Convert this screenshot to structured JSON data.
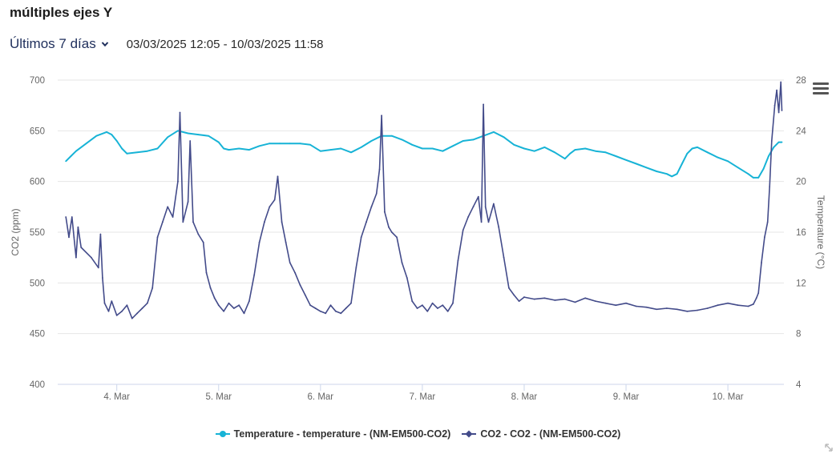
{
  "header": {
    "title": "múltiples ejes Y",
    "range_label": "Últimos 7 días",
    "range_dates": "03/03/2025 12:05 - 10/03/2025 11:58"
  },
  "colors": {
    "temperature": "#17b3d6",
    "co2": "#434b8a",
    "grid": "#e6e6e6"
  },
  "icons": {
    "menu": "hamburger-menu-icon",
    "dropdown": "chevron-down-icon",
    "resize": "resize-handle-icon"
  },
  "chart_data": {
    "type": "line",
    "x_unit": "day of March 2025",
    "xlim": [
      3.42,
      10.55
    ],
    "x_ticks": [
      {
        "x": 4,
        "label": "4. Mar"
      },
      {
        "x": 5,
        "label": "5. Mar"
      },
      {
        "x": 6,
        "label": "6. Mar"
      },
      {
        "x": 7,
        "label": "7. Mar"
      },
      {
        "x": 8,
        "label": "8. Mar"
      },
      {
        "x": 9,
        "label": "9. Mar"
      },
      {
        "x": 10,
        "label": "10. Mar"
      }
    ],
    "y_left": {
      "label": "CO2 (ppm)",
      "ylim": [
        400,
        700
      ],
      "ticks": [
        400,
        450,
        500,
        550,
        600,
        650,
        700
      ]
    },
    "y_right": {
      "label": "Temperature (°C)",
      "ylim": [
        4,
        28
      ],
      "ticks": [
        4,
        8,
        12,
        16,
        20,
        24,
        28
      ]
    },
    "grid": true,
    "legend_position": "bottom-center",
    "series": [
      {
        "name": "Temperature - temperature - (NM-EM500-CO2)",
        "axis": "right",
        "marker": "circle",
        "points": [
          [
            3.5,
            21.6
          ],
          [
            3.55,
            22.0
          ],
          [
            3.6,
            22.4
          ],
          [
            3.7,
            23.0
          ],
          [
            3.8,
            23.6
          ],
          [
            3.9,
            23.9
          ],
          [
            3.95,
            23.7
          ],
          [
            4.0,
            23.2
          ],
          [
            4.05,
            22.6
          ],
          [
            4.1,
            22.2
          ],
          [
            4.2,
            22.3
          ],
          [
            4.3,
            22.4
          ],
          [
            4.4,
            22.6
          ],
          [
            4.5,
            23.5
          ],
          [
            4.6,
            24.0
          ],
          [
            4.7,
            23.8
          ],
          [
            4.8,
            23.7
          ],
          [
            4.9,
            23.6
          ],
          [
            5.0,
            23.1
          ],
          [
            5.05,
            22.6
          ],
          [
            5.1,
            22.5
          ],
          [
            5.2,
            22.6
          ],
          [
            5.3,
            22.5
          ],
          [
            5.4,
            22.8
          ],
          [
            5.5,
            23.0
          ],
          [
            5.6,
            23.0
          ],
          [
            5.7,
            23.0
          ],
          [
            5.8,
            23.0
          ],
          [
            5.9,
            22.9
          ],
          [
            6.0,
            22.4
          ],
          [
            6.1,
            22.5
          ],
          [
            6.2,
            22.6
          ],
          [
            6.3,
            22.3
          ],
          [
            6.4,
            22.7
          ],
          [
            6.5,
            23.2
          ],
          [
            6.6,
            23.6
          ],
          [
            6.7,
            23.6
          ],
          [
            6.8,
            23.3
          ],
          [
            6.9,
            22.9
          ],
          [
            7.0,
            22.6
          ],
          [
            7.1,
            22.6
          ],
          [
            7.2,
            22.4
          ],
          [
            7.3,
            22.8
          ],
          [
            7.4,
            23.2
          ],
          [
            7.5,
            23.3
          ],
          [
            7.6,
            23.6
          ],
          [
            7.7,
            23.9
          ],
          [
            7.8,
            23.5
          ],
          [
            7.9,
            22.9
          ],
          [
            8.0,
            22.6
          ],
          [
            8.1,
            22.4
          ],
          [
            8.2,
            22.7
          ],
          [
            8.3,
            22.3
          ],
          [
            8.4,
            21.8
          ],
          [
            8.45,
            22.2
          ],
          [
            8.5,
            22.5
          ],
          [
            8.6,
            22.6
          ],
          [
            8.7,
            22.4
          ],
          [
            8.8,
            22.3
          ],
          [
            8.9,
            22.0
          ],
          [
            9.0,
            21.7
          ],
          [
            9.1,
            21.4
          ],
          [
            9.2,
            21.1
          ],
          [
            9.3,
            20.8
          ],
          [
            9.4,
            20.6
          ],
          [
            9.45,
            20.4
          ],
          [
            9.5,
            20.6
          ],
          [
            9.55,
            21.4
          ],
          [
            9.6,
            22.2
          ],
          [
            9.65,
            22.6
          ],
          [
            9.7,
            22.7
          ],
          [
            9.8,
            22.3
          ],
          [
            9.9,
            21.9
          ],
          [
            10.0,
            21.6
          ],
          [
            10.1,
            21.1
          ],
          [
            10.2,
            20.6
          ],
          [
            10.25,
            20.3
          ],
          [
            10.3,
            20.3
          ],
          [
            10.35,
            21.0
          ],
          [
            10.4,
            22.0
          ],
          [
            10.45,
            22.7
          ],
          [
            10.5,
            23.1
          ],
          [
            10.53,
            23.1
          ]
        ]
      },
      {
        "name": "CO2 - CO2 - (NM-EM500-CO2)",
        "axis": "left",
        "marker": "diamond",
        "points": [
          [
            3.5,
            565
          ],
          [
            3.53,
            545
          ],
          [
            3.56,
            565
          ],
          [
            3.58,
            545
          ],
          [
            3.6,
            525
          ],
          [
            3.62,
            555
          ],
          [
            3.65,
            535
          ],
          [
            3.75,
            525
          ],
          [
            3.82,
            515
          ],
          [
            3.84,
            548
          ],
          [
            3.86,
            505
          ],
          [
            3.88,
            480
          ],
          [
            3.92,
            472
          ],
          [
            3.95,
            482
          ],
          [
            4.0,
            468
          ],
          [
            4.05,
            472
          ],
          [
            4.1,
            478
          ],
          [
            4.15,
            465
          ],
          [
            4.2,
            470
          ],
          [
            4.25,
            475
          ],
          [
            4.3,
            480
          ],
          [
            4.35,
            495
          ],
          [
            4.4,
            545
          ],
          [
            4.45,
            560
          ],
          [
            4.5,
            575
          ],
          [
            4.55,
            565
          ],
          [
            4.6,
            600
          ],
          [
            4.62,
            668
          ],
          [
            4.65,
            560
          ],
          [
            4.7,
            580
          ],
          [
            4.72,
            640
          ],
          [
            4.75,
            560
          ],
          [
            4.8,
            548
          ],
          [
            4.85,
            540
          ],
          [
            4.88,
            510
          ],
          [
            4.92,
            495
          ],
          [
            4.96,
            485
          ],
          [
            5.0,
            478
          ],
          [
            5.05,
            472
          ],
          [
            5.1,
            480
          ],
          [
            5.15,
            475
          ],
          [
            5.2,
            478
          ],
          [
            5.25,
            470
          ],
          [
            5.3,
            482
          ],
          [
            5.35,
            508
          ],
          [
            5.4,
            540
          ],
          [
            5.45,
            560
          ],
          [
            5.5,
            575
          ],
          [
            5.55,
            582
          ],
          [
            5.58,
            605
          ],
          [
            5.62,
            560
          ],
          [
            5.66,
            540
          ],
          [
            5.7,
            520
          ],
          [
            5.75,
            510
          ],
          [
            5.8,
            498
          ],
          [
            5.85,
            488
          ],
          [
            5.9,
            478
          ],
          [
            5.95,
            475
          ],
          [
            6.0,
            472
          ],
          [
            6.05,
            470
          ],
          [
            6.1,
            478
          ],
          [
            6.15,
            472
          ],
          [
            6.2,
            470
          ],
          [
            6.25,
            475
          ],
          [
            6.3,
            480
          ],
          [
            6.35,
            515
          ],
          [
            6.4,
            545
          ],
          [
            6.45,
            560
          ],
          [
            6.5,
            575
          ],
          [
            6.55,
            588
          ],
          [
            6.58,
            612
          ],
          [
            6.6,
            665
          ],
          [
            6.63,
            570
          ],
          [
            6.67,
            555
          ],
          [
            6.7,
            550
          ],
          [
            6.75,
            545
          ],
          [
            6.8,
            520
          ],
          [
            6.85,
            505
          ],
          [
            6.9,
            482
          ],
          [
            6.95,
            475
          ],
          [
            7.0,
            478
          ],
          [
            7.05,
            472
          ],
          [
            7.1,
            480
          ],
          [
            7.15,
            475
          ],
          [
            7.2,
            478
          ],
          [
            7.25,
            472
          ],
          [
            7.3,
            480
          ],
          [
            7.35,
            522
          ],
          [
            7.4,
            552
          ],
          [
            7.45,
            565
          ],
          [
            7.5,
            575
          ],
          [
            7.55,
            585
          ],
          [
            7.58,
            560
          ],
          [
            7.6,
            676
          ],
          [
            7.62,
            575
          ],
          [
            7.65,
            560
          ],
          [
            7.7,
            578
          ],
          [
            7.75,
            555
          ],
          [
            7.8,
            525
          ],
          [
            7.85,
            495
          ],
          [
            7.9,
            488
          ],
          [
            7.95,
            482
          ],
          [
            8.0,
            486
          ],
          [
            8.1,
            484
          ],
          [
            8.2,
            485
          ],
          [
            8.3,
            483
          ],
          [
            8.4,
            484
          ],
          [
            8.5,
            481
          ],
          [
            8.6,
            485
          ],
          [
            8.7,
            482
          ],
          [
            8.8,
            480
          ],
          [
            8.9,
            478
          ],
          [
            9.0,
            480
          ],
          [
            9.1,
            477
          ],
          [
            9.2,
            476
          ],
          [
            9.3,
            474
          ],
          [
            9.4,
            475
          ],
          [
            9.5,
            474
          ],
          [
            9.6,
            472
          ],
          [
            9.7,
            473
          ],
          [
            9.8,
            475
          ],
          [
            9.9,
            478
          ],
          [
            10.0,
            480
          ],
          [
            10.1,
            478
          ],
          [
            10.2,
            477
          ],
          [
            10.25,
            479
          ],
          [
            10.28,
            485
          ],
          [
            10.3,
            490
          ],
          [
            10.33,
            520
          ],
          [
            10.36,
            545
          ],
          [
            10.39,
            560
          ],
          [
            10.41,
            595
          ],
          [
            10.43,
            640
          ],
          [
            10.46,
            675
          ],
          [
            10.48,
            690
          ],
          [
            10.5,
            668
          ],
          [
            10.52,
            698
          ],
          [
            10.53,
            670
          ]
        ]
      }
    ]
  }
}
